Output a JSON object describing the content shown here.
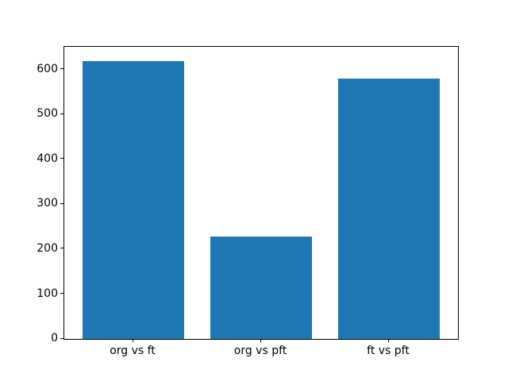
{
  "chart_data": {
    "type": "bar",
    "title": "",
    "xlabel": "",
    "ylabel": "",
    "categories": [
      "org vs ft",
      "org vs pft",
      "ft vs pft"
    ],
    "values": [
      620,
      228,
      580
    ],
    "ylim": [
      0,
      651
    ],
    "yticks": [
      0,
      100,
      200,
      300,
      400,
      500,
      600
    ],
    "grid": false,
    "legend": null,
    "bar_width_fraction": 0.8,
    "colors": {
      "bar": "#1f77b4",
      "spine": "#000000",
      "tick_label": "#000000",
      "background": "#ffffff"
    }
  }
}
